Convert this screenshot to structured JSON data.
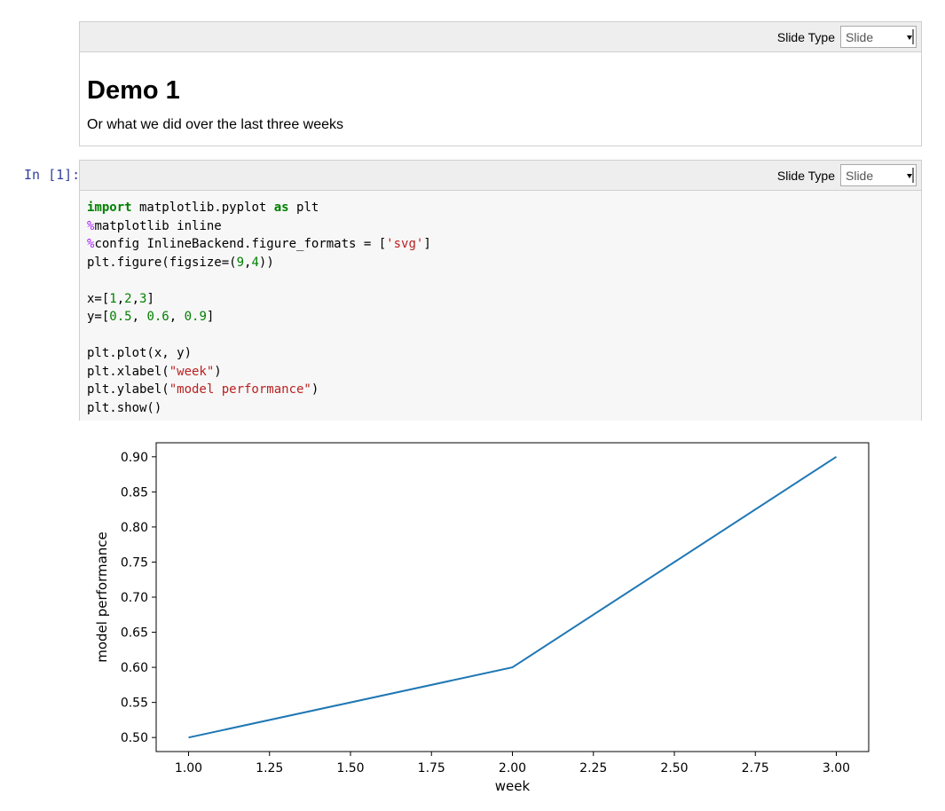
{
  "markdown_cell": {
    "slide_type_label": "Slide Type",
    "slide_type_value": "Slide",
    "heading": "Demo 1",
    "paragraph": "Or what we did over the last three weeks"
  },
  "code_cell": {
    "prompt": "In [1]:",
    "slide_type_label": "Slide Type",
    "slide_type_value": "Slide",
    "lines": [
      [
        {
          "t": "import",
          "c": "kw"
        },
        {
          "t": " matplotlib.pyplot "
        },
        {
          "t": "as",
          "c": "kw"
        },
        {
          "t": " plt"
        }
      ],
      [
        {
          "t": "%",
          "c": "mg"
        },
        {
          "t": "matplotlib inline"
        }
      ],
      [
        {
          "t": "%",
          "c": "mg"
        },
        {
          "t": "config InlineBackend.figure_formats = ["
        },
        {
          "t": "'svg'",
          "c": "st"
        },
        {
          "t": "]"
        }
      ],
      [
        {
          "t": "plt.figure(figsize=("
        },
        {
          "t": "9",
          "c": "nu"
        },
        {
          "t": ","
        },
        {
          "t": "4",
          "c": "nu"
        },
        {
          "t": "))"
        }
      ],
      [],
      [
        {
          "t": "x=["
        },
        {
          "t": "1",
          "c": "nu"
        },
        {
          "t": ","
        },
        {
          "t": "2",
          "c": "nu"
        },
        {
          "t": ","
        },
        {
          "t": "3",
          "c": "nu"
        },
        {
          "t": "]"
        }
      ],
      [
        {
          "t": "y=["
        },
        {
          "t": "0.5",
          "c": "nu"
        },
        {
          "t": ", "
        },
        {
          "t": "0.6",
          "c": "nu"
        },
        {
          "t": ", "
        },
        {
          "t": "0.9",
          "c": "nu"
        },
        {
          "t": "]"
        }
      ],
      [],
      [
        {
          "t": "plt.plot(x, y)"
        }
      ],
      [
        {
          "t": "plt.xlabel("
        },
        {
          "t": "\"week\"",
          "c": "st"
        },
        {
          "t": ")"
        }
      ],
      [
        {
          "t": "plt.ylabel("
        },
        {
          "t": "\"model performance\"",
          "c": "st"
        },
        {
          "t": ")"
        }
      ],
      [
        {
          "t": "plt.show()"
        }
      ]
    ]
  },
  "chart_data": {
    "type": "line",
    "x": [
      1,
      2,
      3
    ],
    "series": [
      {
        "values": [
          0.5,
          0.6,
          0.9
        ],
        "color": "#1f77b4"
      }
    ],
    "xlabel": "week",
    "ylabel": "model performance",
    "xlim": [
      0.9,
      3.1
    ],
    "ylim": [
      0.48,
      0.92
    ],
    "xticks": [
      "1.00",
      "1.25",
      "1.50",
      "1.75",
      "2.00",
      "2.25",
      "2.50",
      "2.75",
      "3.00"
    ],
    "yticks": [
      "0.50",
      "0.55",
      "0.60",
      "0.65",
      "0.70",
      "0.75",
      "0.80",
      "0.85",
      "0.90"
    ],
    "grid": false
  }
}
